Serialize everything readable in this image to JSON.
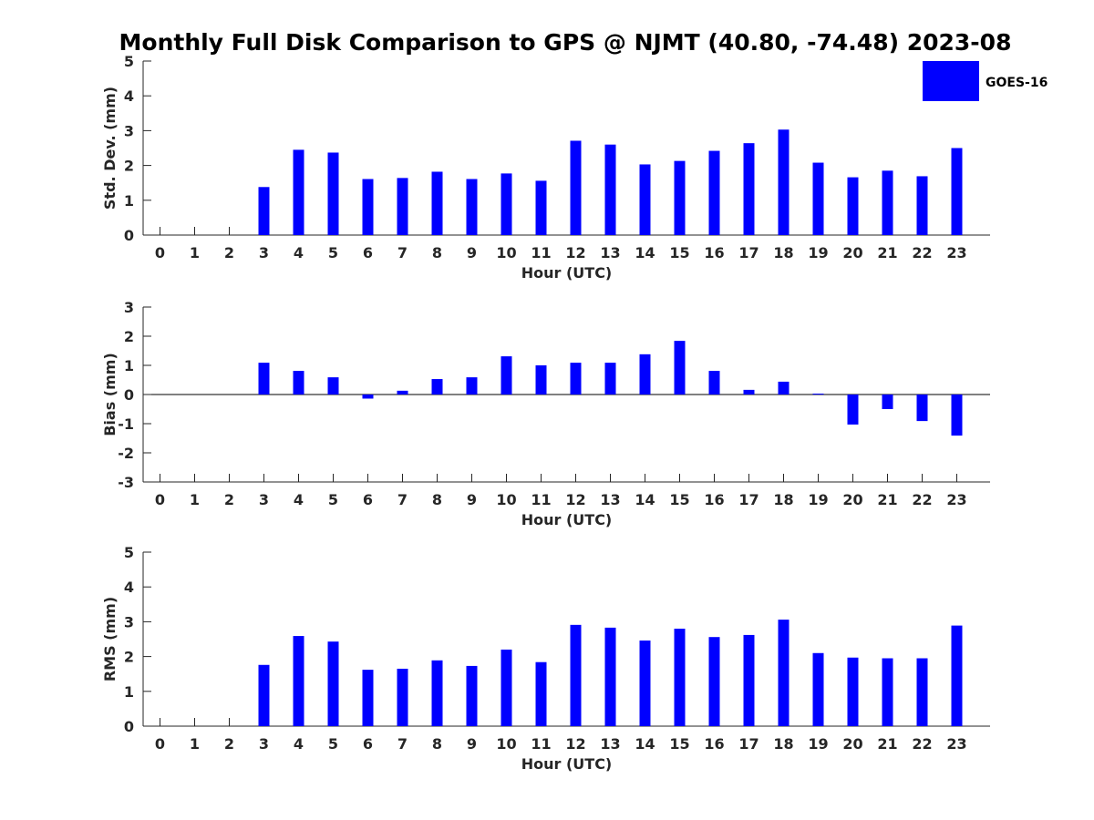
{
  "chart_data": {
    "type": "bar",
    "title": "Monthly Full Disk Comparison to GPS @ NJMT (40.80, -74.48) 2023-08",
    "legend": {
      "entries": [
        "GOES-16"
      ],
      "placement": "top-right"
    },
    "colors": {
      "bar": "#0000ff",
      "axis": "#262626"
    },
    "panels": [
      {
        "name": "std-dev",
        "xlabel": "Hour (UTC)",
        "ylabel": "Std. Dev. (mm)",
        "ylim": [
          0,
          5
        ],
        "yticks": [
          0,
          1,
          2,
          3,
          4,
          5
        ],
        "categories": [
          "0",
          "1",
          "2",
          "3",
          "4",
          "5",
          "6",
          "7",
          "8",
          "9",
          "10",
          "11",
          "12",
          "13",
          "14",
          "15",
          "16",
          "17",
          "18",
          "19",
          "20",
          "21",
          "22",
          "23"
        ],
        "series": [
          {
            "name": "GOES-16",
            "values": [
              null,
              null,
              null,
              1.38,
              2.45,
              2.37,
              1.61,
              1.64,
              1.82,
              1.61,
              1.77,
              1.56,
              2.71,
              2.6,
              2.03,
              2.13,
              2.42,
              2.64,
              3.03,
              2.08,
              1.66,
              1.85,
              1.69,
              2.5
            ]
          }
        ]
      },
      {
        "name": "bias",
        "xlabel": "Hour (UTC)",
        "ylabel": "Bias (mm)",
        "ylim": [
          -3,
          3
        ],
        "yticks": [
          -3,
          -2,
          -1,
          0,
          1,
          2,
          3
        ],
        "categories": [
          "0",
          "1",
          "2",
          "3",
          "4",
          "5",
          "6",
          "7",
          "8",
          "9",
          "10",
          "11",
          "12",
          "13",
          "14",
          "15",
          "16",
          "17",
          "18",
          "19",
          "20",
          "21",
          "22",
          "23"
        ],
        "series": [
          {
            "name": "GOES-16",
            "values": [
              null,
              null,
              null,
              1.09,
              0.81,
              0.59,
              -0.14,
              0.13,
              0.53,
              0.59,
              1.31,
              1.0,
              1.09,
              1.09,
              1.38,
              1.84,
              0.81,
              0.16,
              0.44,
              0.03,
              -1.03,
              -0.5,
              -0.91,
              -1.41
            ]
          }
        ]
      },
      {
        "name": "rms",
        "xlabel": "Hour (UTC)",
        "ylabel": "RMS (mm)",
        "ylim": [
          0,
          5
        ],
        "yticks": [
          0,
          1,
          2,
          3,
          4,
          5
        ],
        "categories": [
          "0",
          "1",
          "2",
          "3",
          "4",
          "5",
          "6",
          "7",
          "8",
          "9",
          "10",
          "11",
          "12",
          "13",
          "14",
          "15",
          "16",
          "17",
          "18",
          "19",
          "20",
          "21",
          "22",
          "23"
        ],
        "series": [
          {
            "name": "GOES-16",
            "values": [
              null,
              null,
              null,
              1.76,
              2.59,
              2.43,
              1.62,
              1.65,
              1.89,
              1.73,
              2.2,
              1.84,
              2.91,
              2.83,
              2.46,
              2.8,
              2.56,
              2.62,
              3.06,
              2.1,
              1.97,
              1.95,
              1.95,
              2.89
            ]
          }
        ]
      }
    ]
  }
}
